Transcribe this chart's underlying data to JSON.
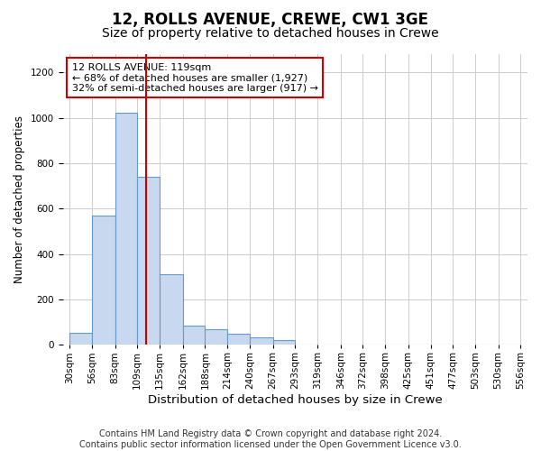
{
  "title1": "12, ROLLS AVENUE, CREWE, CW1 3GE",
  "title2": "Size of property relative to detached houses in Crewe",
  "xlabel": "Distribution of detached houses by size in Crewe",
  "ylabel": "Number of detached properties",
  "footnote": "Contains HM Land Registry data © Crown copyright and database right 2024.\nContains public sector information licensed under the Open Government Licence v3.0.",
  "bar_edges": [
    30,
    56,
    83,
    109,
    135,
    162,
    188,
    214,
    240,
    267,
    293,
    319,
    346,
    372,
    398,
    425,
    451,
    477,
    503,
    530,
    556
  ],
  "bar_heights": [
    55,
    570,
    1020,
    740,
    310,
    85,
    70,
    50,
    35,
    20,
    0,
    0,
    0,
    0,
    0,
    0,
    0,
    0,
    0,
    0
  ],
  "bar_color": "#c8d8ee",
  "bar_edgecolor": "#6699cc",
  "property_size": 119,
  "vline_color": "#cc0000",
  "annotation_text": "12 ROLLS AVENUE: 119sqm\n← 68% of detached houses are smaller (1,927)\n32% of semi-detached houses are larger (917) →",
  "annotation_box_edgecolor": "#cc0000",
  "annotation_box_facecolor": "#ffffff",
  "ylim": [
    0,
    1280
  ],
  "yticks": [
    0,
    200,
    400,
    600,
    800,
    1000,
    1200
  ],
  "background_color": "#ffffff",
  "grid_color": "#cccccc",
  "title1_fontsize": 12,
  "title2_fontsize": 10,
  "xlabel_fontsize": 9.5,
  "ylabel_fontsize": 8.5,
  "tick_fontsize": 7.5,
  "annotation_fontsize": 8,
  "footnote_fontsize": 7
}
